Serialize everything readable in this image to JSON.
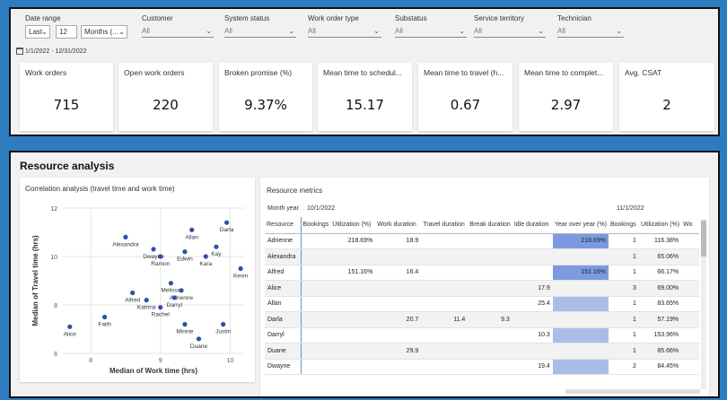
{
  "filters": {
    "date_range": {
      "label": "Date range",
      "mode": "Last",
      "count": "12",
      "unit": "Months (...",
      "dates": "1/1/2022 - 12/31/2022"
    },
    "customer": {
      "label": "Customer",
      "value": "All"
    },
    "system_status": {
      "label": "System status",
      "value": "All"
    },
    "work_order_type": {
      "label": "Work order type",
      "value": "All"
    },
    "substatus": {
      "label": "Substatus",
      "value": "All"
    },
    "service_territory": {
      "label": "Service territory",
      "value": "All"
    },
    "technician": {
      "label": "Technician",
      "value": "All"
    }
  },
  "kpis": [
    {
      "title": "Work orders",
      "value": "715"
    },
    {
      "title": "Open work orders",
      "value": "220"
    },
    {
      "title": "Broken promise (%)",
      "value": "9.37%"
    },
    {
      "title": "Mean time to schedul...",
      "value": "15.17"
    },
    {
      "title": "Mean time to travel (h...",
      "value": "0.67"
    },
    {
      "title": "Mean time to complet...",
      "value": "2.97"
    },
    {
      "title": "Avg. CSAT",
      "value": "2"
    }
  ],
  "section_title": "Resource analysis",
  "chart_data": {
    "type": "scatter",
    "title": "Correlation analysis (travel time and work time)",
    "xlabel": "Median of Work time (hrs)",
    "ylabel": "Median of Travel time (hrs)",
    "xlim": [
      7.6,
      10.2
    ],
    "ylim": [
      6,
      12
    ],
    "xticks": [
      "8",
      "9",
      "10"
    ],
    "yticks": [
      "6",
      "8",
      "10",
      "12"
    ],
    "points": [
      {
        "name": "Alice",
        "x": 7.7,
        "y": 7.1
      },
      {
        "name": "Faith",
        "x": 8.2,
        "y": 7.5
      },
      {
        "name": "Alfred",
        "x": 8.6,
        "y": 8.5
      },
      {
        "name": "Katrina",
        "x": 8.8,
        "y": 8.2
      },
      {
        "name": "Rachel",
        "x": 9.0,
        "y": 7.9
      },
      {
        "name": "Alexandra",
        "x": 8.5,
        "y": 10.8
      },
      {
        "name": "Dwayne",
        "x": 8.9,
        "y": 10.3
      },
      {
        "name": "Ramon",
        "x": 9.0,
        "y": 10.0
      },
      {
        "name": "Edwin",
        "x": 9.35,
        "y": 10.2
      },
      {
        "name": "Allan",
        "x": 9.45,
        "y": 11.1
      },
      {
        "name": "Darla",
        "x": 9.95,
        "y": 11.4
      },
      {
        "name": "Kay",
        "x": 9.8,
        "y": 10.4
      },
      {
        "name": "Kara",
        "x": 9.65,
        "y": 10.0
      },
      {
        "name": "Kevin",
        "x": 10.15,
        "y": 9.5
      },
      {
        "name": "Melissa",
        "x": 9.15,
        "y": 8.9
      },
      {
        "name": "Adrienne",
        "x": 9.3,
        "y": 8.6
      },
      {
        "name": "Darryl",
        "x": 9.2,
        "y": 8.3
      },
      {
        "name": "Minnie",
        "x": 9.35,
        "y": 7.2
      },
      {
        "name": "Justin",
        "x": 9.9,
        "y": 7.2
      },
      {
        "name": "Duane",
        "x": 9.55,
        "y": 6.6
      }
    ]
  },
  "table": {
    "title": "Resource metrics",
    "month_year_label": "Month year",
    "months": [
      "10/1/2022",
      "11/1/2022"
    ],
    "columns": [
      "Resource",
      "Bookings",
      "Utilization (%)",
      "Work duration",
      "Travel duration",
      "Break duration",
      "Idle duration",
      "Year over year (%)",
      "Bookings",
      "Utilization (%)",
      "Wo"
    ],
    "rows": [
      [
        "Adrienne",
        "",
        "218.69%",
        "18.9",
        "",
        "",
        "",
        "218.69%",
        "1",
        "116.38%",
        ""
      ],
      [
        "Alexandra",
        "",
        "",
        "",
        "",
        "",
        "",
        "",
        "1",
        "65.06%",
        ""
      ],
      [
        "Alfred",
        "",
        "151.16%",
        "16.4",
        "",
        "",
        "",
        "151.16%",
        "1",
        "66.17%",
        ""
      ],
      [
        "Alice",
        "",
        "",
        "",
        "",
        "",
        "17.9",
        "",
        "3",
        "69.00%",
        ""
      ],
      [
        "Allan",
        "",
        "",
        "",
        "",
        "",
        "25.4",
        "",
        "1",
        "83.65%",
        ""
      ],
      [
        "Darla",
        "",
        "",
        "20.7",
        "11.4",
        "9.3",
        "",
        "",
        "1",
        "57.19%",
        ""
      ],
      [
        "Darryl",
        "",
        "",
        "",
        "",
        "",
        "10.3",
        "",
        "1",
        "153.96%",
        ""
      ],
      [
        "Duane",
        "",
        "",
        "29.9",
        "",
        "",
        "",
        "",
        "1",
        "85.66%",
        ""
      ],
      [
        "Dwayne",
        "",
        "",
        "",
        "",
        "",
        "19.4",
        "",
        "2",
        "84.45%",
        ""
      ]
    ]
  }
}
